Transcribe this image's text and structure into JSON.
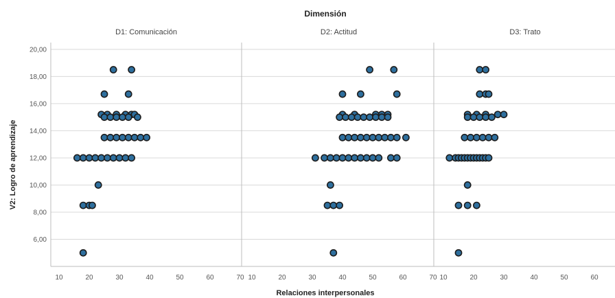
{
  "chart_data": {
    "type": "scatter",
    "title": "Dimensión",
    "xlabel": "Relaciones interpersonales",
    "ylabel": "V2: Logro de aprendizaje",
    "xlim": [
      10,
      70
    ],
    "ylim": [
      4,
      20.5
    ],
    "x_ticks": [
      "10",
      "20",
      "30",
      "40",
      "50",
      "60",
      "70"
    ],
    "y_ticks": [
      "20,00",
      "18,00",
      "16,00",
      "14,00",
      "12,00",
      "10,00",
      "8,00",
      "6,00"
    ],
    "y_tick_values": [
      20,
      18,
      16,
      14,
      12,
      10,
      8,
      6
    ],
    "grid": true,
    "colors": {
      "marker_fill": "#2e6f9e",
      "marker_edge": "#1c1c1c",
      "grid": "#d9d9d9"
    },
    "panels": [
      {
        "name": "D1: Comunicación",
        "points": [
          [
            28,
            18.5
          ],
          [
            34,
            18.5
          ],
          [
            25,
            16.7
          ],
          [
            33,
            16.7
          ],
          [
            24,
            15.2
          ],
          [
            26,
            15.2
          ],
          [
            29,
            15.2
          ],
          [
            32,
            15.2
          ],
          [
            34,
            15.2
          ],
          [
            35,
            15.2
          ],
          [
            25,
            15
          ],
          [
            27,
            15
          ],
          [
            29,
            15
          ],
          [
            31,
            15
          ],
          [
            33,
            15
          ],
          [
            36,
            15
          ],
          [
            25,
            13.5
          ],
          [
            27,
            13.5
          ],
          [
            29,
            13.5
          ],
          [
            31,
            13.5
          ],
          [
            33,
            13.5
          ],
          [
            35,
            13.5
          ],
          [
            37,
            13.5
          ],
          [
            39,
            13.5
          ],
          [
            16,
            12
          ],
          [
            18,
            12
          ],
          [
            20,
            12
          ],
          [
            22,
            12
          ],
          [
            24,
            12
          ],
          [
            26,
            12
          ],
          [
            28,
            12
          ],
          [
            30,
            12
          ],
          [
            32,
            12
          ],
          [
            34,
            12
          ],
          [
            23,
            10
          ],
          [
            18,
            8.5
          ],
          [
            20,
            8.5
          ],
          [
            21,
            8.5
          ],
          [
            18,
            5
          ]
        ]
      },
      {
        "name": "D2: Actitud",
        "points": [
          [
            49,
            18.5
          ],
          [
            57,
            18.5
          ],
          [
            40,
            16.7
          ],
          [
            46,
            16.7
          ],
          [
            58,
            16.7
          ],
          [
            40,
            15.2
          ],
          [
            44,
            15.2
          ],
          [
            51,
            15.2
          ],
          [
            53,
            15.2
          ],
          [
            55,
            15.2
          ],
          [
            39,
            15
          ],
          [
            41,
            15
          ],
          [
            43,
            15
          ],
          [
            45,
            15
          ],
          [
            47,
            15
          ],
          [
            49,
            15
          ],
          [
            51,
            15
          ],
          [
            53,
            15
          ],
          [
            55,
            15
          ],
          [
            40,
            13.5
          ],
          [
            42,
            13.5
          ],
          [
            44,
            13.5
          ],
          [
            46,
            13.5
          ],
          [
            48,
            13.5
          ],
          [
            50,
            13.5
          ],
          [
            52,
            13.5
          ],
          [
            54,
            13.5
          ],
          [
            56,
            13.5
          ],
          [
            58,
            13.5
          ],
          [
            61,
            13.5
          ],
          [
            31,
            12
          ],
          [
            34,
            12
          ],
          [
            36,
            12
          ],
          [
            38,
            12
          ],
          [
            40,
            12
          ],
          [
            42,
            12
          ],
          [
            44,
            12
          ],
          [
            46,
            12
          ],
          [
            48,
            12
          ],
          [
            50,
            12
          ],
          [
            52,
            12
          ],
          [
            56,
            12
          ],
          [
            58,
            12
          ],
          [
            36,
            10
          ],
          [
            35,
            8.5
          ],
          [
            37,
            8.5
          ],
          [
            39,
            8.5
          ],
          [
            37,
            5
          ]
        ]
      },
      {
        "name": "D3: Trato",
        "points": [
          [
            22,
            18.5
          ],
          [
            24,
            18.5
          ],
          [
            22,
            16.7
          ],
          [
            24,
            16.7
          ],
          [
            25,
            16.7
          ],
          [
            18,
            15.2
          ],
          [
            21,
            15.2
          ],
          [
            24,
            15.2
          ],
          [
            28,
            15.2
          ],
          [
            30,
            15.2
          ],
          [
            18,
            15
          ],
          [
            20,
            15
          ],
          [
            22,
            15
          ],
          [
            24,
            15
          ],
          [
            26,
            15
          ],
          [
            17,
            13.5
          ],
          [
            19,
            13.5
          ],
          [
            21,
            13.5
          ],
          [
            23,
            13.5
          ],
          [
            25,
            13.5
          ],
          [
            27,
            13.5
          ],
          [
            12,
            12
          ],
          [
            14,
            12
          ],
          [
            15,
            12
          ],
          [
            16,
            12
          ],
          [
            17,
            12
          ],
          [
            18,
            12
          ],
          [
            19,
            12
          ],
          [
            20,
            12
          ],
          [
            21,
            12
          ],
          [
            22,
            12
          ],
          [
            23,
            12
          ],
          [
            24,
            12
          ],
          [
            25,
            12
          ],
          [
            18,
            10
          ],
          [
            15,
            8.5
          ],
          [
            18,
            8.5
          ],
          [
            21,
            8.5
          ],
          [
            15,
            5
          ]
        ]
      }
    ]
  }
}
